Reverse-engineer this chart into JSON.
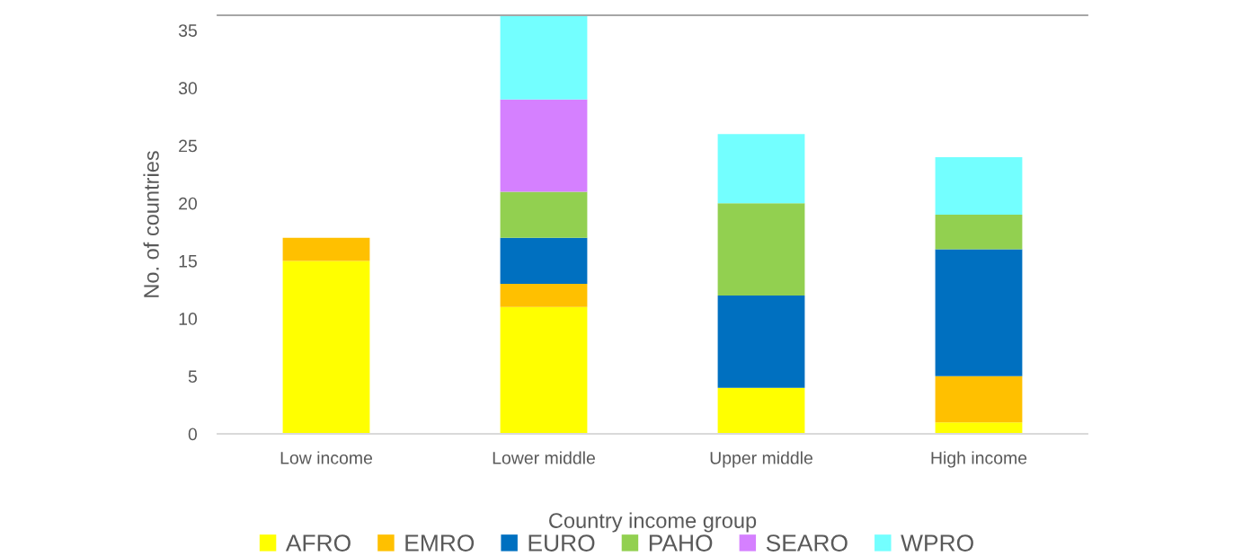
{
  "chart_data": {
    "type": "bar",
    "stacked": true,
    "xlabel": "Country income group",
    "ylabel": "No. of countries",
    "categories": [
      "Low income",
      "Lower middle",
      "Upper middle",
      "High income"
    ],
    "series": [
      {
        "name": "AFRO",
        "color": "#ffff00",
        "values": [
          15,
          11,
          4,
          1
        ]
      },
      {
        "name": "EMRO",
        "color": "#ffc000",
        "values": [
          2,
          2,
          null,
          4
        ]
      },
      {
        "name": "EURO",
        "color": "#0070c0",
        "values": [
          null,
          4,
          8,
          11
        ]
      },
      {
        "name": "PAHO",
        "color": "#92d050",
        "values": [
          null,
          4,
          8,
          3
        ]
      },
      {
        "name": "SEARO",
        "color": "#d580ff",
        "values": [
          null,
          8,
          null,
          null
        ]
      },
      {
        "name": "WPRO",
        "color": "#73ffff",
        "values": [
          null,
          7.3,
          6,
          5
        ]
      }
    ],
    "ylim": [
      0,
      36.3
    ],
    "yticks": [
      0,
      5,
      10,
      15,
      20,
      25,
      30,
      35
    ],
    "legend": "bottom"
  }
}
